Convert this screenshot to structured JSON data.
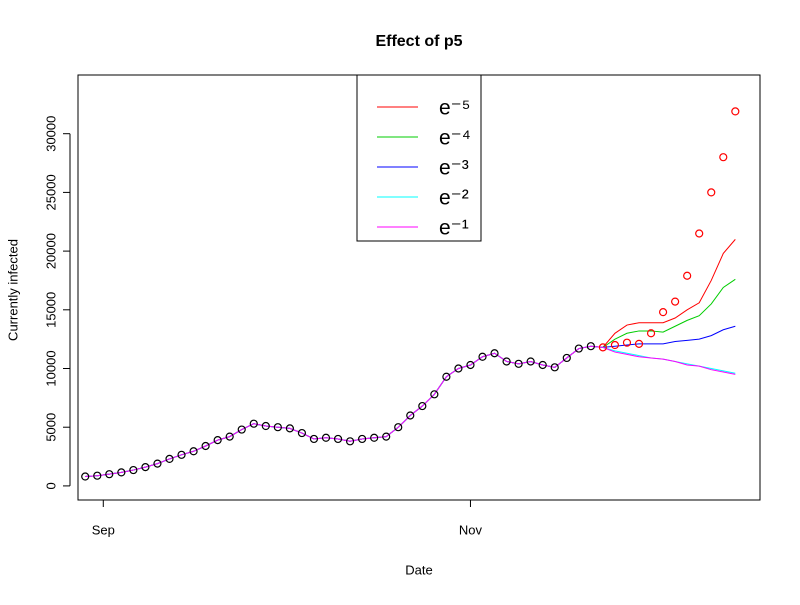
{
  "chart_data": {
    "type": "line",
    "title": "Effect of p5",
    "xlabel": "Date",
    "ylabel": "Currently infected",
    "x": [
      -3,
      -1,
      1,
      3,
      5,
      7,
      9,
      11,
      13,
      15,
      17,
      19,
      21,
      23,
      25,
      27,
      29,
      31,
      33,
      35,
      37,
      39,
      41,
      43,
      45,
      47,
      49,
      51,
      53,
      55,
      57,
      59,
      61,
      63,
      65,
      67,
      69,
      71,
      73,
      75,
      77,
      79,
      81,
      83,
      85,
      87,
      89,
      91,
      93,
      95,
      97,
      99,
      101,
      103,
      105
    ],
    "xlim": [
      -4.2,
      109.1
    ],
    "xticks": [
      {
        "value": 0,
        "label": "Sep"
      },
      {
        "value": 61,
        "label": "Nov"
      }
    ],
    "ylim": [
      -1200,
      35000
    ],
    "yticks": [
      0,
      5000,
      10000,
      15000,
      20000,
      25000,
      30000
    ],
    "legend": "top",
    "series": [
      {
        "name": "e⁻⁵",
        "color": "#ff0000",
        "values": [
          800,
          870,
          1000,
          1150,
          1350,
          1600,
          1900,
          2300,
          2650,
          2950,
          3400,
          3900,
          4200,
          4800,
          5300,
          5100,
          5000,
          4900,
          4500,
          4000,
          4100,
          4000,
          3800,
          4000,
          4100,
          4200,
          5000,
          6000,
          6800,
          7800,
          9300,
          10000,
          10300,
          11000,
          11300,
          10600,
          10400,
          10600,
          10300,
          10100,
          10900,
          11700,
          11900,
          11800,
          13000,
          13700,
          13900,
          13900,
          13900,
          14300,
          15000,
          15600,
          17500,
          19800,
          21000
        ]
      },
      {
        "name": "e⁻⁴",
        "color": "#00cd00",
        "values": [
          800,
          870,
          1000,
          1150,
          1350,
          1600,
          1900,
          2300,
          2650,
          2950,
          3400,
          3900,
          4200,
          4800,
          5300,
          5100,
          5000,
          4900,
          4500,
          4000,
          4100,
          4000,
          3800,
          4000,
          4100,
          4200,
          5000,
          6000,
          6800,
          7800,
          9300,
          10000,
          10300,
          11000,
          11300,
          10600,
          10400,
          10600,
          10300,
          10100,
          10900,
          11700,
          11900,
          11800,
          12500,
          13000,
          13200,
          13200,
          13100,
          13600,
          14100,
          14500,
          15500,
          16900,
          17600
        ]
      },
      {
        "name": "e⁻³",
        "color": "#0000ff",
        "values": [
          800,
          870,
          1000,
          1150,
          1350,
          1600,
          1900,
          2300,
          2650,
          2950,
          3400,
          3900,
          4200,
          4800,
          5300,
          5100,
          5000,
          4900,
          4500,
          4000,
          4100,
          4000,
          3800,
          4000,
          4100,
          4200,
          5000,
          6000,
          6800,
          7800,
          9300,
          10000,
          10300,
          11000,
          11300,
          10600,
          10400,
          10600,
          10300,
          10100,
          10900,
          11700,
          11900,
          11800,
          11900,
          12000,
          12100,
          12100,
          12100,
          12300,
          12400,
          12500,
          12800,
          13300,
          13600
        ]
      },
      {
        "name": "e⁻²",
        "color": "#00ffff",
        "values": [
          800,
          870,
          1000,
          1150,
          1350,
          1600,
          1900,
          2300,
          2650,
          2950,
          3400,
          3900,
          4200,
          4800,
          5300,
          5100,
          5000,
          4900,
          4500,
          4000,
          4100,
          4000,
          3800,
          4000,
          4100,
          4200,
          5000,
          6000,
          6800,
          7800,
          9300,
          10000,
          10300,
          11000,
          11300,
          10600,
          10400,
          10600,
          10300,
          10100,
          10900,
          11700,
          11900,
          11800,
          11500,
          11300,
          11100,
          10900,
          10800,
          10600,
          10400,
          10200,
          10000,
          9800,
          9600
        ]
      },
      {
        "name": "e⁻¹",
        "color": "#ff00ff",
        "values": [
          800,
          870,
          1000,
          1150,
          1350,
          1600,
          1900,
          2300,
          2650,
          2950,
          3400,
          3900,
          4200,
          4800,
          5300,
          5100,
          5000,
          4900,
          4500,
          4000,
          4100,
          4000,
          3800,
          4000,
          4100,
          4200,
          5000,
          6000,
          6800,
          7800,
          9300,
          10000,
          10300,
          11000,
          11300,
          10600,
          10400,
          10600,
          10300,
          10100,
          10900,
          11700,
          11900,
          11800,
          11400,
          11200,
          11000,
          10900,
          10800,
          10600,
          10300,
          10200,
          9900,
          9700,
          9500
        ]
      },
      {
        "color": "#000000",
        "marker": "circle",
        "values": [
          800,
          870,
          1000,
          1150,
          1350,
          1600,
          1900,
          2300,
          2650,
          2950,
          3400,
          3900,
          4200,
          4800,
          5300,
          5100,
          5000,
          4900,
          4500,
          4000,
          4100,
          4000,
          3800,
          4000,
          4100,
          4200,
          5000,
          6000,
          6800,
          7800,
          9300,
          10000,
          10300,
          11000,
          11300,
          10600,
          10400,
          10600,
          10300,
          10100,
          10900,
          11700,
          11900,
          null,
          null,
          null,
          null,
          null,
          null,
          null,
          null,
          null,
          null,
          null,
          null
        ]
      },
      {
        "color": "#ff0000",
        "marker": "circle",
        "values": [
          null,
          null,
          null,
          null,
          null,
          null,
          null,
          null,
          null,
          null,
          null,
          null,
          null,
          null,
          null,
          null,
          null,
          null,
          null,
          null,
          null,
          null,
          null,
          null,
          null,
          null,
          null,
          null,
          null,
          null,
          null,
          null,
          null,
          null,
          null,
          null,
          null,
          null,
          null,
          null,
          null,
          null,
          null,
          11800,
          12000,
          12200,
          12100,
          13000,
          14800,
          15700,
          17900,
          21500,
          25000,
          28000,
          31900
        ]
      }
    ]
  }
}
